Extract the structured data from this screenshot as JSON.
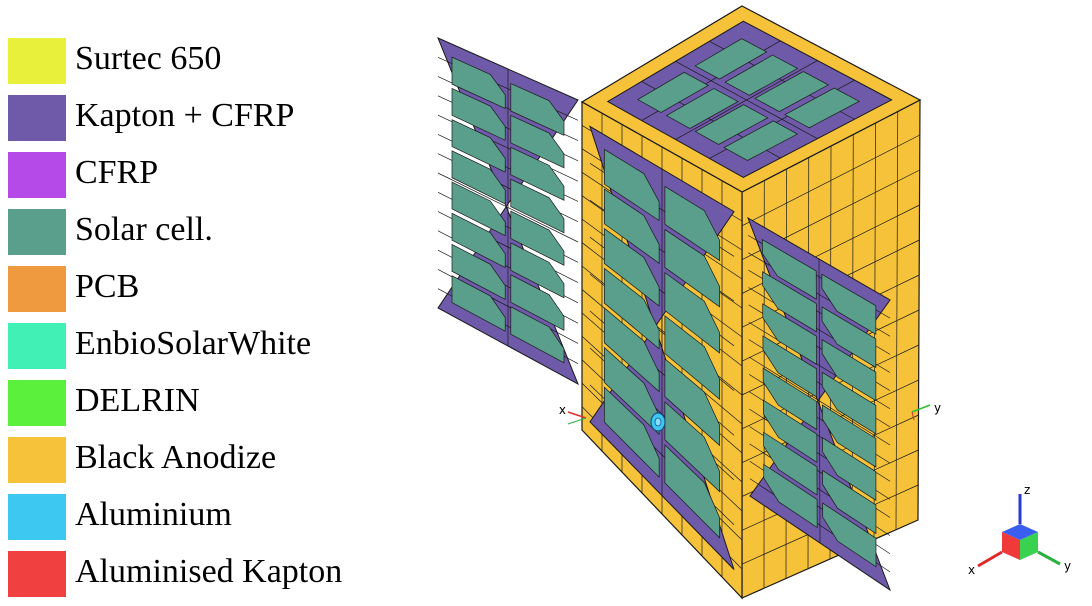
{
  "legend": {
    "items": [
      {
        "label": "Surtec 650",
        "color": "#e8f03c"
      },
      {
        "label": "Kapton + CFRP",
        "color": "#6e5aa8"
      },
      {
        "label": "CFRP",
        "color": "#b54ae8"
      },
      {
        "label": "Solar cell.",
        "color": "#5a9e8c"
      },
      {
        "label": "PCB",
        "color": "#f09a40"
      },
      {
        "label": "EnbioSolarWhite",
        "color": "#40f0b4"
      },
      {
        "label": "DELRIN",
        "color": "#5af03c"
      },
      {
        "label": "Black Anodize",
        "color": "#f5c23a"
      },
      {
        "label": "Aluminium",
        "color": "#3cc8f0"
      },
      {
        "label": "Aluminised Kapton",
        "color": "#f04040"
      }
    ]
  },
  "model": {
    "axis_labels": {
      "x": "x",
      "y": "y"
    }
  },
  "triad": {
    "labels": {
      "x": "x",
      "y": "y",
      "z": "z"
    }
  }
}
